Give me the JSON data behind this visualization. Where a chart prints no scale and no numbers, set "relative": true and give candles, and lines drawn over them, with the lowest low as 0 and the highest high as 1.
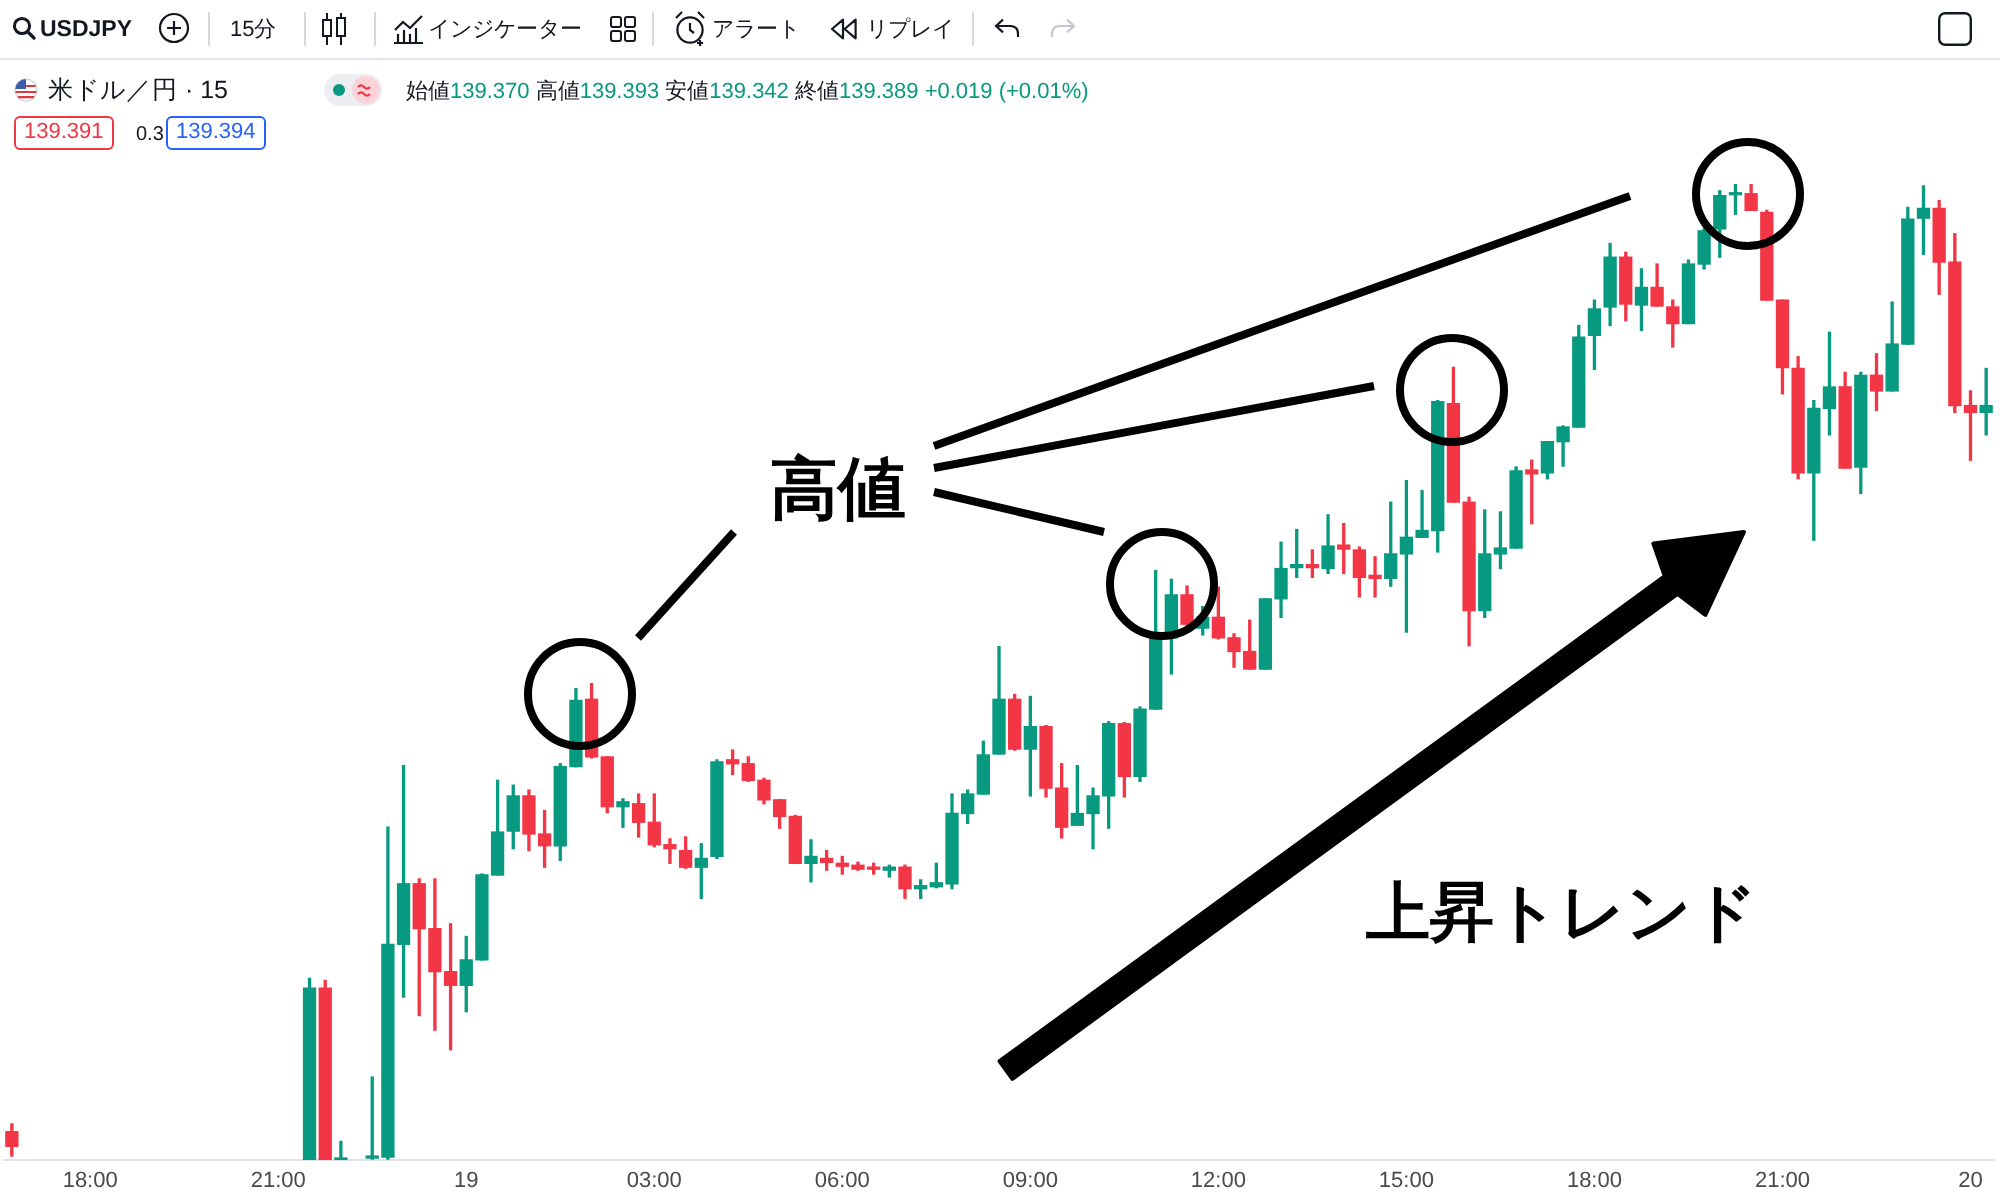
{
  "chart_data": {
    "type": "candlestick",
    "relative": true,
    "title": "米ドル／円 · 15",
    "annotations": [
      "USDJPY",
      "15分",
      "インジケーター",
      "アラート",
      "リプレイ",
      "始値139.370 高値139.393 安値139.342 終値139.389 +0.019 (+0.01%)",
      "139.391",
      "0.3",
      "139.394",
      "高値",
      "上昇トレンド"
    ],
    "categories": [
      null,
      null,
      null,
      null,
      null,
      "18:00",
      null,
      null,
      null,
      null,
      null,
      null,
      null,
      null,
      null,
      null,
      null,
      "21:00",
      null,
      null,
      null,
      null,
      null,
      null,
      null,
      null,
      null,
      null,
      null,
      "19",
      null,
      null,
      null,
      null,
      null,
      null,
      null,
      null,
      null,
      null,
      null,
      "03:00",
      null,
      null,
      null,
      null,
      null,
      null,
      null,
      null,
      null,
      null,
      null,
      "06:00",
      null,
      null,
      null,
      null,
      null,
      null,
      null,
      null,
      null,
      null,
      null,
      "09:00",
      null,
      null,
      null,
      null,
      null,
      null,
      null,
      null,
      null,
      null,
      null,
      "12:00",
      null,
      null,
      null,
      null,
      null,
      null,
      null,
      null,
      null,
      null,
      null,
      "15:00",
      null,
      null,
      null,
      null,
      null,
      null,
      null,
      null,
      null,
      null,
      null,
      "18:00",
      null,
      null,
      null,
      null,
      null,
      null,
      null,
      null,
      null,
      null,
      null,
      "21:00",
      null,
      null,
      null,
      null,
      null,
      null,
      null,
      null,
      null,
      null,
      null,
      "20",
      null
    ],
    "ohlc": [
      [
        0.029,
        0.037,
        0.004,
        0.014
      ],
      null,
      null,
      null,
      null,
      null,
      null,
      null,
      null,
      null,
      null,
      null,
      null,
      null,
      null,
      null,
      null,
      null,
      null,
      [
        0,
        0.186,
        0,
        0.176
      ],
      [
        0.176,
        0.184,
        0,
        0
      ],
      [
        0,
        0.019,
        0,
        0
      ],
      null,
      [
        0.002,
        0.085,
        0.001,
        0.004
      ],
      [
        0.003,
        0.341,
        0.001,
        0.221
      ],
      [
        0.221,
        0.404,
        0.167,
        0.283
      ],
      [
        0.283,
        0.288,
        0.148,
        0.237
      ],
      [
        0.237,
        0.288,
        0.133,
        0.193
      ],
      [
        0.193,
        0.242,
        0.113,
        0.179
      ],
      [
        0.179,
        0.229,
        0.152,
        0.205
      ],
      [
        0.205,
        0.293,
        0.205,
        0.292
      ],
      [
        0.292,
        0.389,
        0.292,
        0.336
      ],
      [
        0.337,
        0.384,
        0.319,
        0.373
      ],
      [
        0.373,
        0.379,
        0.317,
        0.334
      ],
      [
        0.334,
        0.358,
        0.3,
        0.322
      ],
      [
        0.322,
        0.406,
        0.307,
        0.403
      ],
      [
        0.403,
        0.483,
        0.403,
        0.471
      ],
      [
        0.472,
        0.488,
        0.412,
        0.413
      ],
      [
        0.413,
        0.413,
        0.356,
        0.362
      ],
      [
        0.362,
        0.37,
        0.341,
        0.367
      ],
      [
        0.365,
        0.375,
        0.331,
        0.346
      ],
      [
        0.346,
        0.375,
        0.321,
        0.323
      ],
      [
        0.323,
        0.329,
        0.304,
        0.319
      ],
      [
        0.317,
        0.331,
        0.299,
        0.3
      ],
      [
        0.3,
        0.324,
        0.268,
        0.309
      ],
      [
        0.311,
        0.41,
        0.309,
        0.408
      ],
      [
        0.41,
        0.42,
        0.395,
        0.406
      ],
      [
        0.406,
        0.413,
        0.388,
        0.389
      ],
      [
        0.389,
        0.391,
        0.365,
        0.369
      ],
      [
        0.369,
        0.369,
        0.34,
        0.352
      ],
      [
        0.352,
        0.353,
        0.304,
        0.304
      ],
      [
        0.304,
        0.328,
        0.285,
        0.311
      ],
      [
        0.309,
        0.317,
        0.297,
        0.305
      ],
      [
        0.304,
        0.311,
        0.293,
        0.301
      ],
      [
        0.302,
        0.305,
        0.297,
        0.298
      ],
      [
        0.3,
        0.304,
        0.293,
        0.298
      ],
      [
        0.297,
        0.302,
        0.29,
        0.3
      ],
      [
        0.3,
        0.302,
        0.268,
        0.278
      ],
      [
        0.278,
        0.287,
        0.268,
        0.281
      ],
      [
        0.28,
        0.304,
        0.279,
        0.284
      ],
      [
        0.283,
        0.375,
        0.278,
        0.355
      ],
      [
        0.355,
        0.379,
        0.345,
        0.375
      ],
      [
        0.375,
        0.429,
        0.375,
        0.415
      ],
      [
        0.416,
        0.526,
        0.416,
        0.472
      ],
      [
        0.472,
        0.477,
        0.42,
        0.421
      ],
      [
        0.421,
        0.475,
        0.373,
        0.444
      ],
      [
        0.444,
        0.445,
        0.372,
        0.381
      ],
      [
        0.381,
        0.406,
        0.33,
        0.341
      ],
      [
        0.343,
        0.404,
        0.343,
        0.355
      ],
      [
        0.355,
        0.381,
        0.319,
        0.373
      ],
      [
        0.373,
        0.449,
        0.34,
        0.447
      ],
      [
        0.447,
        0.448,
        0.372,
        0.393
      ],
      [
        0.393,
        0.464,
        0.388,
        0.462
      ],
      [
        0.462,
        0.604,
        0.462,
        0.535
      ],
      [
        0.535,
        0.595,
        0.498,
        0.579
      ],
      [
        0.579,
        0.588,
        0.547,
        0.549
      ],
      [
        0.545,
        0.567,
        0.538,
        0.556
      ],
      [
        0.556,
        0.587,
        0.534,
        0.535
      ],
      [
        0.535,
        0.539,
        0.505,
        0.521
      ],
      [
        0.521,
        0.553,
        0.503,
        0.503
      ],
      [
        0.503,
        0.575,
        0.503,
        0.575
      ],
      [
        0.575,
        0.633,
        0.556,
        0.606
      ],
      [
        0.607,
        0.646,
        0.597,
        0.61
      ],
      [
        0.61,
        0.625,
        0.597,
        0.607
      ],
      [
        0.606,
        0.661,
        0.601,
        0.629
      ],
      [
        0.63,
        0.652,
        0.601,
        0.626
      ],
      [
        0.625,
        0.628,
        0.577,
        0.597
      ],
      [
        0.599,
        0.618,
        0.577,
        0.596
      ],
      [
        0.596,
        0.674,
        0.588,
        0.621
      ],
      [
        0.621,
        0.696,
        0.541,
        0.638
      ],
      [
        0.638,
        0.686,
        0.638,
        0.645
      ],
      [
        0.645,
        0.778,
        0.623,
        0.777
      ],
      [
        0.775,
        0.812,
        0.674,
        0.674
      ],
      [
        0.674,
        0.679,
        0.527,
        0.563
      ],
      [
        0.563,
        0.666,
        0.556,
        0.621
      ],
      [
        0.621,
        0.664,
        0.606,
        0.627
      ],
      [
        0.627,
        0.71,
        0.627,
        0.706
      ],
      [
        0.707,
        0.717,
        0.652,
        0.703
      ],
      [
        0.704,
        0.736,
        0.698,
        0.736
      ],
      [
        0.736,
        0.752,
        0.711,
        0.751
      ],
      [
        0.751,
        0.855,
        0.751,
        0.843
      ],
      [
        0.845,
        0.881,
        0.81,
        0.872
      ],
      [
        0.874,
        0.939,
        0.855,
        0.925
      ],
      [
        0.925,
        0.93,
        0.86,
        0.877
      ],
      [
        0.876,
        0.913,
        0.85,
        0.894
      ],
      [
        0.894,
        0.918,
        0.875,
        0.875
      ],
      [
        0.874,
        0.881,
        0.833,
        0.857
      ],
      [
        0.857,
        0.922,
        0.857,
        0.918
      ],
      [
        0.918,
        0.954,
        0.913,
        0.952
      ],
      [
        0.954,
        0.993,
        0.925,
        0.988
      ],
      [
        0.989,
        1,
        0.969,
        0.99
      ],
      [
        0.99,
        1,
        0.973,
        0.973
      ],
      [
        0.971,
        0.973,
        0.881,
        0.881
      ],
      [
        0.881,
        0.881,
        0.785,
        0.812
      ],
      [
        0.811,
        0.823,
        0.698,
        0.704
      ],
      [
        0.704,
        0.778,
        0.635,
        0.77
      ],
      [
        0.77,
        0.848,
        0.743,
        0.792
      ],
      [
        0.792,
        0.807,
        0.709,
        0.709
      ],
      [
        0.71,
        0.807,
        0.683,
        0.804
      ],
      [
        0.804,
        0.826,
        0.768,
        0.788
      ],
      [
        0.788,
        0.879,
        0.788,
        0.836
      ],
      [
        0.836,
        0.976,
        0.836,
        0.964
      ],
      [
        0.965,
        0.998,
        0.928,
        0.975
      ],
      [
        0.975,
        0.983,
        0.887,
        0.92
      ],
      [
        0.92,
        0.949,
        0.766,
        0.773
      ],
      [
        0.773,
        0.788,
        0.717,
        0.766
      ],
      [
        0.766,
        0.811,
        0.743,
        0.773
      ]
    ],
    "colors": [
      "#f23645",
      null,
      null,
      null,
      null,
      null,
      null,
      null,
      null,
      null,
      null,
      null,
      null,
      null,
      null,
      null,
      null,
      null,
      null,
      "#089981",
      "#f23645",
      "#089981",
      null,
      "#089981",
      "#089981",
      "#089981",
      "#f23645",
      "#f23645",
      "#f23645",
      "#089981",
      "#089981",
      "#089981",
      "#089981",
      "#f23645",
      "#f23645",
      "#089981",
      "#089981",
      "#f23645",
      "#f23645",
      "#089981",
      "#f23645",
      "#f23645",
      "#f23645",
      "#f23645",
      "#089981",
      "#089981",
      "#f23645",
      "#f23645",
      "#f23645",
      "#f23645",
      "#f23645",
      "#089981",
      "#f23645",
      "#f23645",
      "#f23645",
      "#f23645",
      "#089981",
      "#f23645",
      "#089981",
      "#089981",
      "#089981",
      "#089981",
      "#089981",
      "#089981",
      "#f23645",
      "#089981",
      "#f23645",
      "#f23645",
      "#089981",
      "#089981",
      "#089981",
      "#f23645",
      "#089981",
      "#089981",
      "#089981",
      "#f23645",
      "#089981",
      "#f23645",
      "#f23645",
      "#f23645",
      "#089981",
      "#089981",
      "#089981",
      "#f23645",
      "#089981",
      "#f23645",
      "#f23645",
      "#f23645",
      "#089981",
      "#089981",
      "#089981",
      "#089981",
      "#f23645",
      "#f23645",
      "#089981",
      "#089981",
      "#089981",
      "#f23645",
      "#089981",
      "#089981",
      "#089981",
      "#089981",
      "#089981",
      "#f23645",
      "#089981",
      "#f23645",
      "#f23645",
      "#089981",
      "#089981",
      "#089981",
      "#089981",
      "#f23645",
      "#f23645",
      "#f23645",
      "#f23645",
      "#089981",
      "#089981",
      "#f23645",
      "#089981",
      "#f23645",
      "#089981",
      "#089981",
      "#089981",
      "#f23645",
      "#f23645",
      "#f23645",
      "#089981"
    ]
  }
}
